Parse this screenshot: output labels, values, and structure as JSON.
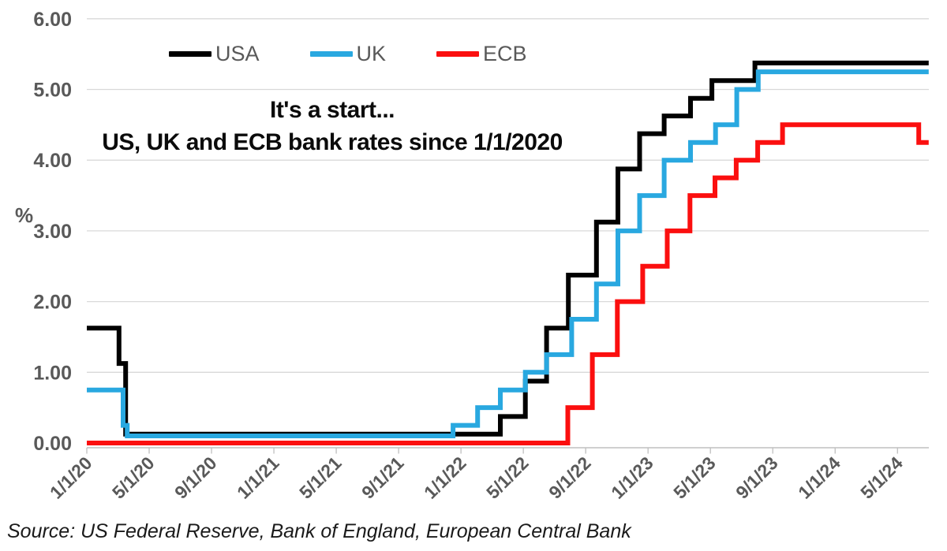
{
  "source_note": "Source: US Federal Reserve, Bank of England, European Central Bank",
  "chart_data": {
    "type": "line",
    "line_style": "step-after",
    "title_lines": [
      "It's a start...",
      "US, UK and ECB bank rates since 1/1/2020"
    ],
    "ylabel": "%",
    "ylim": [
      0,
      6
    ],
    "grid": true,
    "legend_position": "top-center",
    "x_start": "2020-01-01",
    "x_end": "2024-07-01",
    "yticks": [
      {
        "label": "0.00",
        "value": 0
      },
      {
        "label": "1.00",
        "value": 1
      },
      {
        "label": "2.00",
        "value": 2
      },
      {
        "label": "3.00",
        "value": 3
      },
      {
        "label": "4.00",
        "value": 4
      },
      {
        "label": "5.00",
        "value": 5
      },
      {
        "label": "6.00",
        "value": 6
      }
    ],
    "xticks": [
      {
        "label": "1/1/20",
        "date": "2020-01-01"
      },
      {
        "label": "5/1/20",
        "date": "2020-05-01"
      },
      {
        "label": "9/1/20",
        "date": "2020-09-01"
      },
      {
        "label": "1/1/21",
        "date": "2021-01-01"
      },
      {
        "label": "5/1/21",
        "date": "2021-05-01"
      },
      {
        "label": "9/1/21",
        "date": "2021-09-01"
      },
      {
        "label": "1/1/22",
        "date": "2022-01-01"
      },
      {
        "label": "5/1/22",
        "date": "2022-05-01"
      },
      {
        "label": "9/1/22",
        "date": "2022-09-01"
      },
      {
        "label": "1/1/23",
        "date": "2023-01-01"
      },
      {
        "label": "5/1/23",
        "date": "2023-05-01"
      },
      {
        "label": "9/1/23",
        "date": "2023-09-01"
      },
      {
        "label": "1/1/24",
        "date": "2024-01-01"
      },
      {
        "label": "5/1/24",
        "date": "2024-05-01"
      }
    ],
    "series": [
      {
        "name": "USA",
        "color": "#000000",
        "points": [
          [
            "2020-01-01",
            1.625
          ],
          [
            "2020-03-03",
            1.125
          ],
          [
            "2020-03-16",
            0.125
          ],
          [
            "2022-03-17",
            0.375
          ],
          [
            "2022-05-05",
            0.875
          ],
          [
            "2022-06-16",
            1.625
          ],
          [
            "2022-07-28",
            2.375
          ],
          [
            "2022-09-22",
            3.125
          ],
          [
            "2022-11-03",
            3.875
          ],
          [
            "2022-12-15",
            4.375
          ],
          [
            "2023-02-02",
            4.625
          ],
          [
            "2023-03-23",
            4.875
          ],
          [
            "2023-05-04",
            5.125
          ],
          [
            "2023-07-27",
            5.375
          ]
        ]
      },
      {
        "name": "UK",
        "color": "#29A8E0",
        "points": [
          [
            "2020-01-01",
            0.75
          ],
          [
            "2020-03-11",
            0.25
          ],
          [
            "2020-03-19",
            0.1
          ],
          [
            "2021-12-16",
            0.25
          ],
          [
            "2022-02-03",
            0.5
          ],
          [
            "2022-03-17",
            0.75
          ],
          [
            "2022-05-05",
            1.0
          ],
          [
            "2022-06-16",
            1.25
          ],
          [
            "2022-08-04",
            1.75
          ],
          [
            "2022-09-22",
            2.25
          ],
          [
            "2022-11-03",
            3.0
          ],
          [
            "2022-12-15",
            3.5
          ],
          [
            "2023-02-02",
            4.0
          ],
          [
            "2023-03-23",
            4.25
          ],
          [
            "2023-05-11",
            4.5
          ],
          [
            "2023-06-22",
            5.0
          ],
          [
            "2023-08-03",
            5.25
          ]
        ]
      },
      {
        "name": "ECB",
        "color": "#FB0F0F",
        "points": [
          [
            "2020-01-01",
            0.0
          ],
          [
            "2022-07-27",
            0.5
          ],
          [
            "2022-09-14",
            1.25
          ],
          [
            "2022-11-02",
            2.0
          ],
          [
            "2022-12-21",
            2.5
          ],
          [
            "2023-02-08",
            3.0
          ],
          [
            "2023-03-22",
            3.5
          ],
          [
            "2023-05-10",
            3.75
          ],
          [
            "2023-06-21",
            4.0
          ],
          [
            "2023-08-02",
            4.25
          ],
          [
            "2023-09-20",
            4.5
          ],
          [
            "2024-06-12",
            4.25
          ]
        ]
      }
    ]
  }
}
